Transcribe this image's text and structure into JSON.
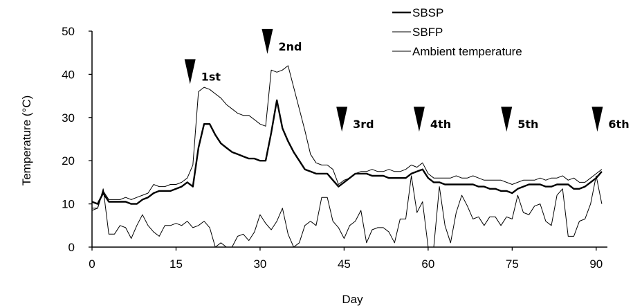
{
  "chart_data": {
    "type": "line",
    "title": "",
    "xlabel": "Day",
    "ylabel": "Temperature (°C)",
    "xlim": [
      0,
      92
    ],
    "ylim": [
      0,
      50
    ],
    "x_ticks": [
      0,
      15,
      30,
      45,
      60,
      75,
      90
    ],
    "y_ticks": [
      0,
      10,
      20,
      30,
      40,
      50
    ],
    "grid": false,
    "legend_position": "top-right",
    "series": [
      {
        "name": "SBSP",
        "stroke_width": 2.4,
        "x": [
          0,
          1,
          2,
          3,
          4,
          5,
          6,
          7,
          8,
          9,
          10,
          11,
          12,
          13,
          14,
          15,
          16,
          17,
          18,
          19,
          20,
          21,
          22,
          23,
          24,
          25,
          26,
          27,
          28,
          29,
          30,
          31,
          32,
          33,
          34,
          35,
          36,
          37,
          38,
          39,
          40,
          41,
          42,
          43,
          44,
          45,
          46,
          47,
          48,
          49,
          50,
          51,
          52,
          53,
          54,
          55,
          56,
          57,
          58,
          59,
          60,
          61,
          62,
          63,
          64,
          65,
          66,
          67,
          68,
          69,
          70,
          71,
          72,
          73,
          74,
          75,
          76,
          77,
          78,
          79,
          80,
          81,
          82,
          83,
          84,
          85,
          86,
          87,
          88,
          89,
          90,
          91
        ],
        "y": [
          10.5,
          10,
          12.5,
          10.5,
          10.5,
          10.5,
          10.5,
          10,
          10,
          11,
          11.5,
          12.5,
          13,
          13,
          13,
          13.5,
          14,
          15,
          14,
          23,
          28.5,
          28.5,
          26,
          24,
          23,
          22,
          21.5,
          21,
          20.5,
          20.5,
          20,
          20,
          26.5,
          34,
          27.5,
          24.5,
          22,
          20,
          18,
          17.5,
          17,
          17,
          17,
          15.5,
          14,
          15,
          16,
          17,
          17,
          17,
          16.5,
          16.5,
          16.5,
          16,
          16,
          16,
          16,
          17,
          17.5,
          18,
          16,
          15,
          15,
          14.5,
          14.5,
          14.5,
          14.5,
          14.5,
          14.5,
          14,
          14,
          13.5,
          13.5,
          13,
          13,
          12.5,
          13.5,
          14,
          14.5,
          14.5,
          14.5,
          14,
          14,
          14.5,
          14.5,
          14.5,
          13.5,
          13.5,
          14,
          15,
          16,
          17.5
        ]
      },
      {
        "name": "SBFP",
        "stroke_width": 1,
        "x": [
          0,
          1,
          2,
          3,
          4,
          5,
          6,
          7,
          8,
          9,
          10,
          11,
          12,
          13,
          14,
          15,
          16,
          17,
          18,
          19,
          20,
          21,
          22,
          23,
          24,
          25,
          26,
          27,
          28,
          29,
          30,
          31,
          32,
          33,
          34,
          35,
          36,
          37,
          38,
          39,
          40,
          41,
          42,
          43,
          44,
          45,
          46,
          47,
          48,
          49,
          50,
          51,
          52,
          53,
          54,
          55,
          56,
          57,
          58,
          59,
          60,
          61,
          62,
          63,
          64,
          65,
          66,
          67,
          68,
          69,
          70,
          71,
          72,
          73,
          74,
          75,
          76,
          77,
          78,
          79,
          80,
          81,
          82,
          83,
          84,
          85,
          86,
          87,
          88,
          89,
          90,
          91
        ],
        "y": [
          9,
          9,
          13,
          11,
          11,
          11,
          11.5,
          11,
          11.5,
          12,
          12.5,
          14.5,
          14,
          14,
          14.5,
          14.5,
          15,
          16,
          19,
          36,
          37,
          36.5,
          35.5,
          34.5,
          33,
          32,
          31,
          30.5,
          30.5,
          29.5,
          28.5,
          28,
          41,
          40.5,
          41,
          42,
          37,
          32,
          27,
          21.5,
          19.5,
          19,
          19,
          18,
          14.5,
          15.5,
          16,
          17,
          17.5,
          17.5,
          18,
          17.5,
          17.5,
          18,
          17.5,
          17.5,
          18,
          19,
          18.5,
          19.5,
          17,
          16,
          16,
          16,
          16,
          16.5,
          16,
          16,
          16.5,
          16,
          15.5,
          15.5,
          15.5,
          15.5,
          15,
          14.5,
          15,
          15.5,
          15.5,
          15.5,
          16,
          15.5,
          16,
          16,
          16.5,
          15.5,
          16,
          15,
          15,
          16,
          17,
          18
        ]
      },
      {
        "name": "Ambient temperature",
        "stroke_width": 1,
        "x": [
          0,
          1,
          2,
          3,
          4,
          5,
          6,
          7,
          8,
          9,
          10,
          11,
          12,
          13,
          14,
          15,
          16,
          17,
          18,
          19,
          20,
          21,
          22,
          23,
          24,
          25,
          26,
          27,
          28,
          29,
          30,
          31,
          32,
          33,
          34,
          35,
          36,
          37,
          38,
          39,
          40,
          41,
          42,
          43,
          44,
          45,
          46,
          47,
          48,
          49,
          50,
          51,
          52,
          53,
          54,
          55,
          56,
          57,
          58,
          59,
          60,
          61,
          62,
          63,
          64,
          65,
          66,
          67,
          68,
          69,
          70,
          71,
          72,
          73,
          74,
          75,
          76,
          77,
          78,
          79,
          80,
          81,
          82,
          83,
          84,
          85,
          86,
          87,
          88,
          89,
          90,
          91
        ],
        "y": [
          8.5,
          9,
          13.5,
          3,
          3,
          5,
          4.5,
          2,
          5,
          7.5,
          5,
          3.5,
          2.5,
          5,
          5,
          5.5,
          5,
          6,
          4.5,
          5,
          6,
          4.5,
          0,
          1,
          0,
          0,
          2.5,
          3,
          1.5,
          3.5,
          7.5,
          5.5,
          4,
          6,
          9,
          3,
          0,
          1,
          5,
          6,
          5,
          11.5,
          11.5,
          6,
          4.5,
          2,
          5,
          6,
          8.5,
          1,
          4,
          4.5,
          4.5,
          3.5,
          1,
          6.5,
          6.5,
          16.5,
          8,
          10.5,
          0,
          0,
          14,
          5,
          1,
          8,
          12,
          9.5,
          6.5,
          7,
          5,
          7,
          7,
          5,
          7,
          6.5,
          12,
          8,
          7.5,
          9.5,
          10,
          6,
          5,
          12,
          13.5,
          2.5,
          2.5,
          6,
          6.5,
          10,
          16.5,
          10
        ]
      }
    ],
    "annotations": [
      {
        "label": "1st",
        "x": 17.5,
        "y": 43.5
      },
      {
        "label": "2nd",
        "x": 31.3,
        "y": 50.5
      },
      {
        "label": "3rd",
        "x": 44.6,
        "y": 32.5
      },
      {
        "label": "4th",
        "x": 58.4,
        "y": 32.5
      },
      {
        "label": "5th",
        "x": 74.0,
        "y": 32.5
      },
      {
        "label": "6th",
        "x": 90.2,
        "y": 32.5
      }
    ]
  }
}
